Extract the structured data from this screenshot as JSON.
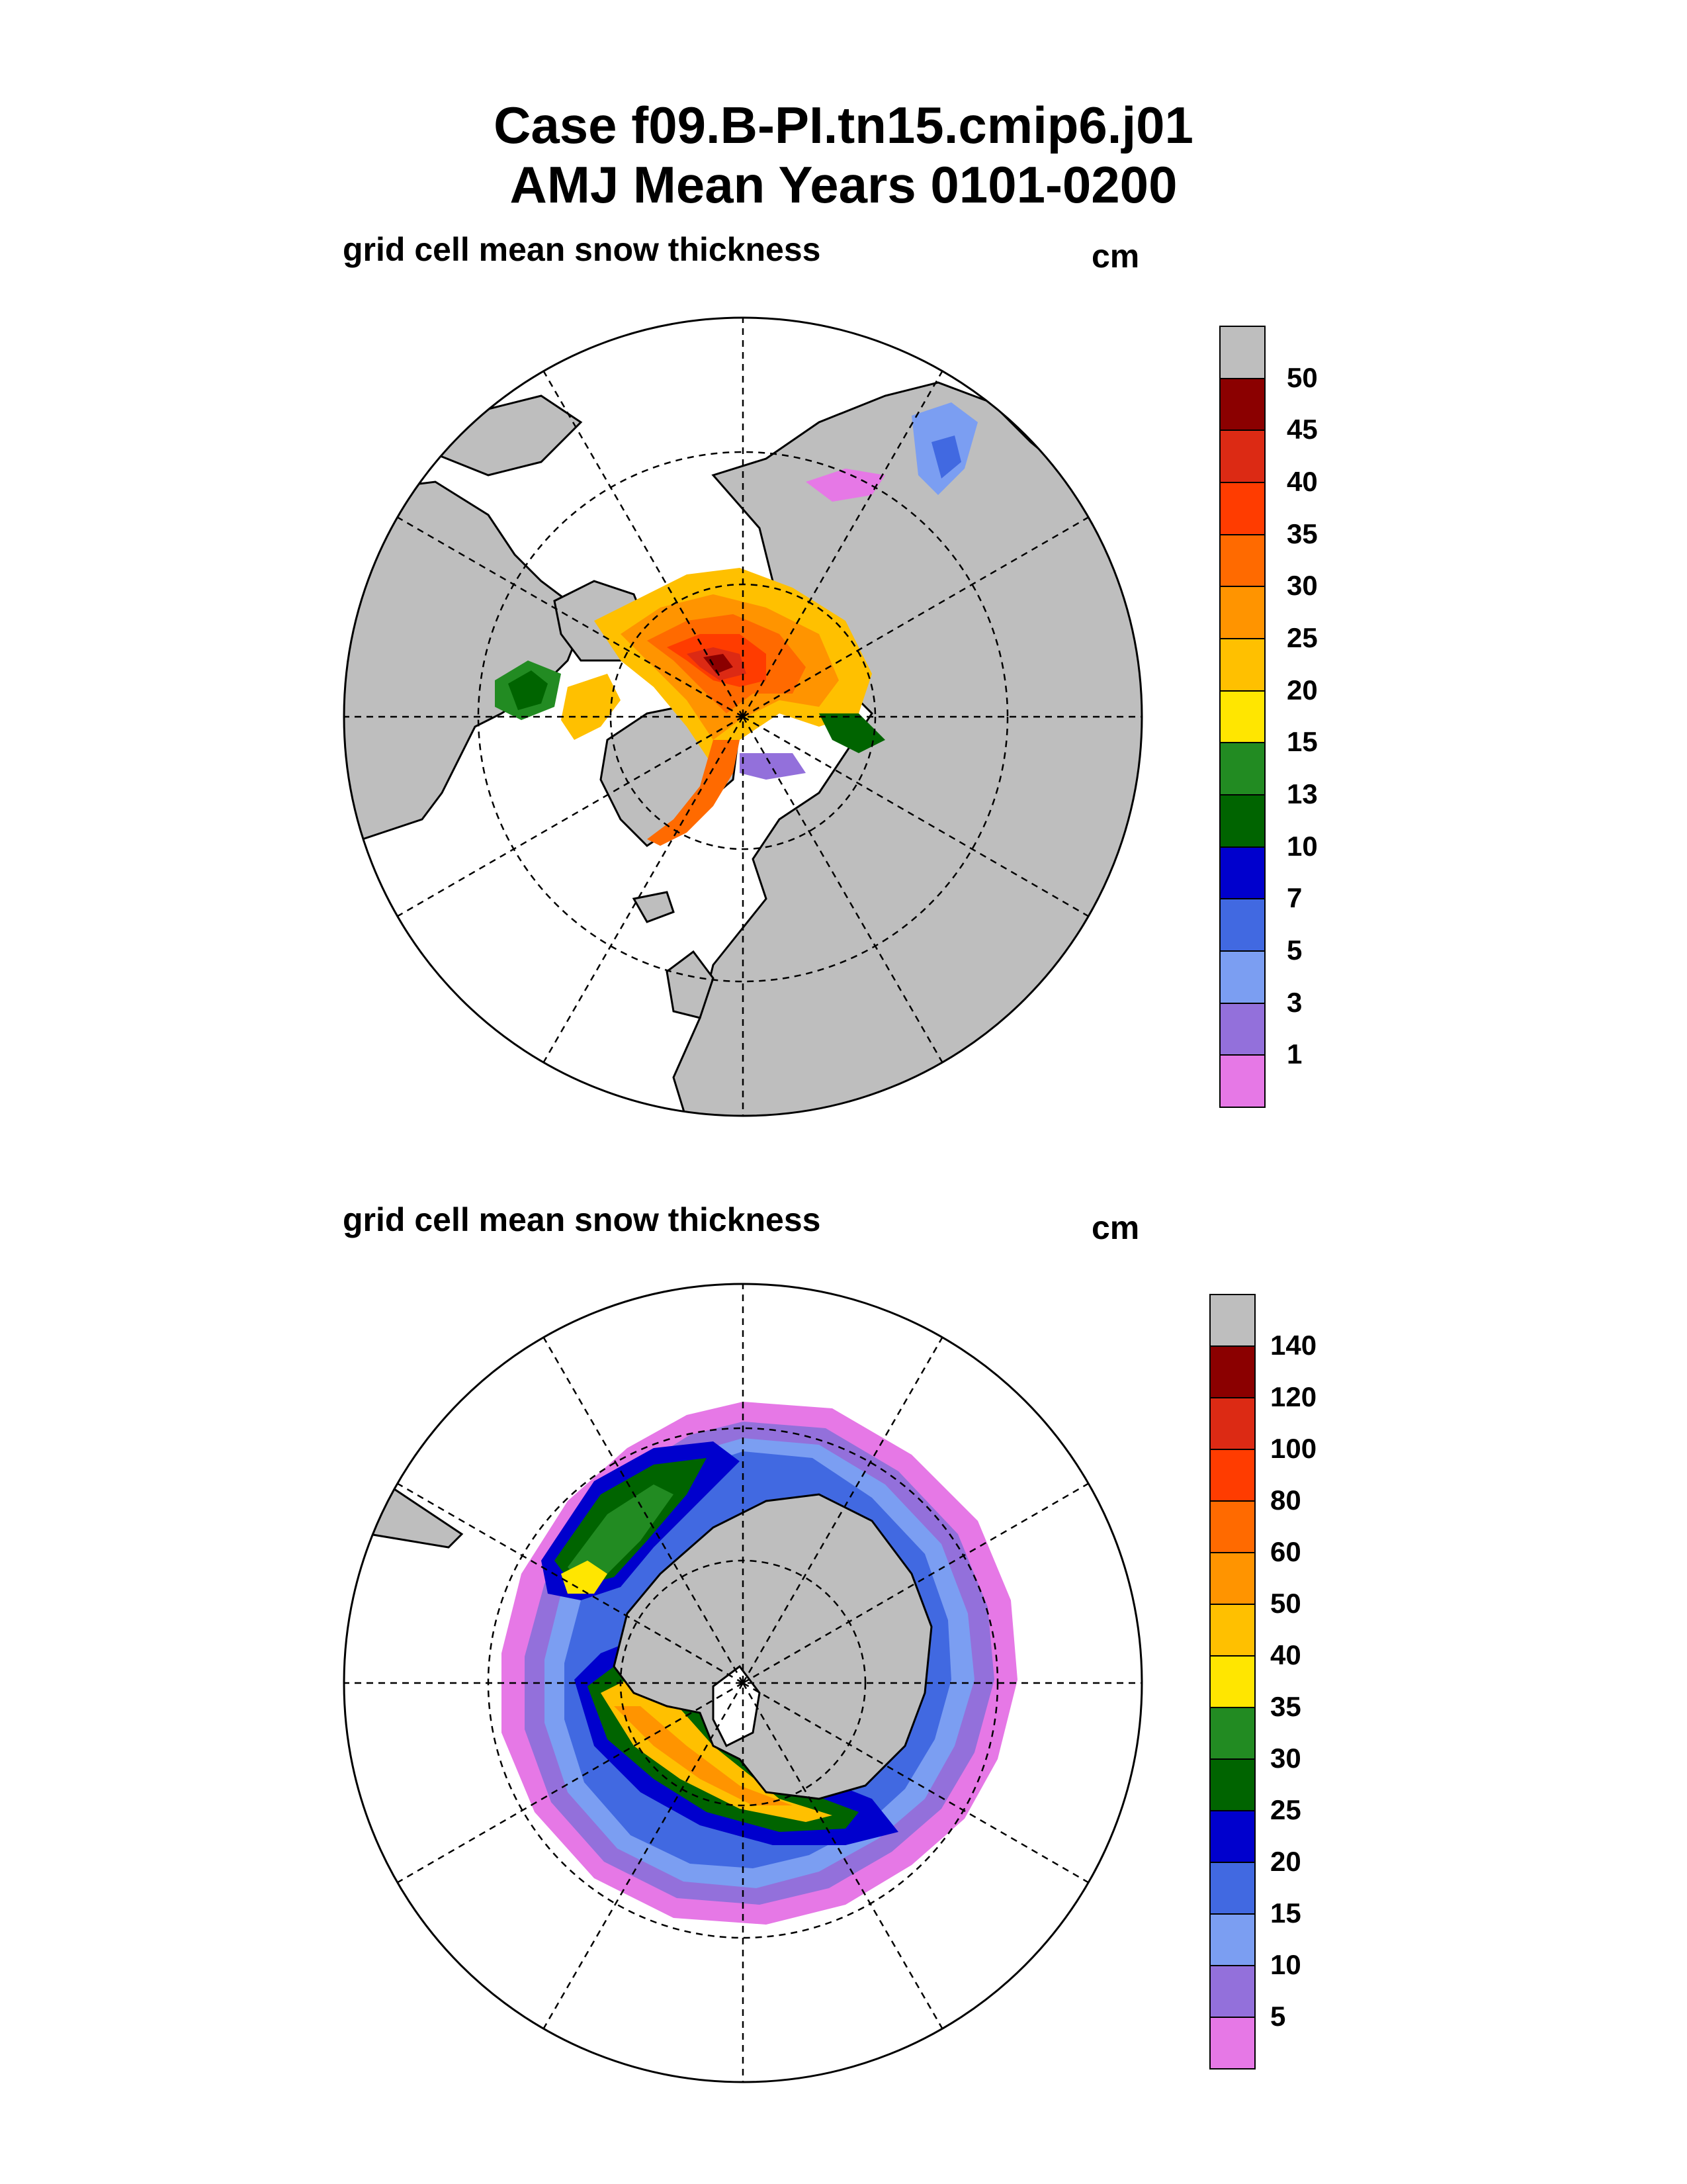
{
  "title": {
    "line1": "Case f09.B-PI.tn15.cmip6.j01",
    "line2": "AMJ Mean   Years 0101-0200"
  },
  "panels": [
    {
      "label": "grid cell mean snow thickness",
      "unit": "cm",
      "hemisphere": "north",
      "legend": {
        "levels": [
          "50",
          "45",
          "40",
          "35",
          "30",
          "25",
          "20",
          "15",
          "13",
          "10",
          "7",
          "5",
          "3",
          "1"
        ],
        "colors": [
          "#bebebe",
          "#8b0000",
          "#dc2a14",
          "#ff3c00",
          "#ff6a00",
          "#ff9400",
          "#ffc000",
          "#ffe600",
          "#228b22",
          "#006400",
          "#0000cd",
          "#4169e1",
          "#7b9ef2",
          "#9370db",
          "#e678e6"
        ]
      }
    },
    {
      "label": "grid cell mean snow thickness",
      "unit": "cm",
      "hemisphere": "south",
      "legend": {
        "levels": [
          "140",
          "120",
          "100",
          "80",
          "60",
          "50",
          "40",
          "35",
          "30",
          "25",
          "20",
          "15",
          "10",
          "5"
        ],
        "colors": [
          "#bebebe",
          "#8b0000",
          "#dc2a14",
          "#ff3c00",
          "#ff6a00",
          "#ff9400",
          "#ffc000",
          "#ffe600",
          "#228b22",
          "#006400",
          "#0000cd",
          "#4169e1",
          "#7b9ef2",
          "#9370db",
          "#e678e6"
        ]
      }
    }
  ]
}
